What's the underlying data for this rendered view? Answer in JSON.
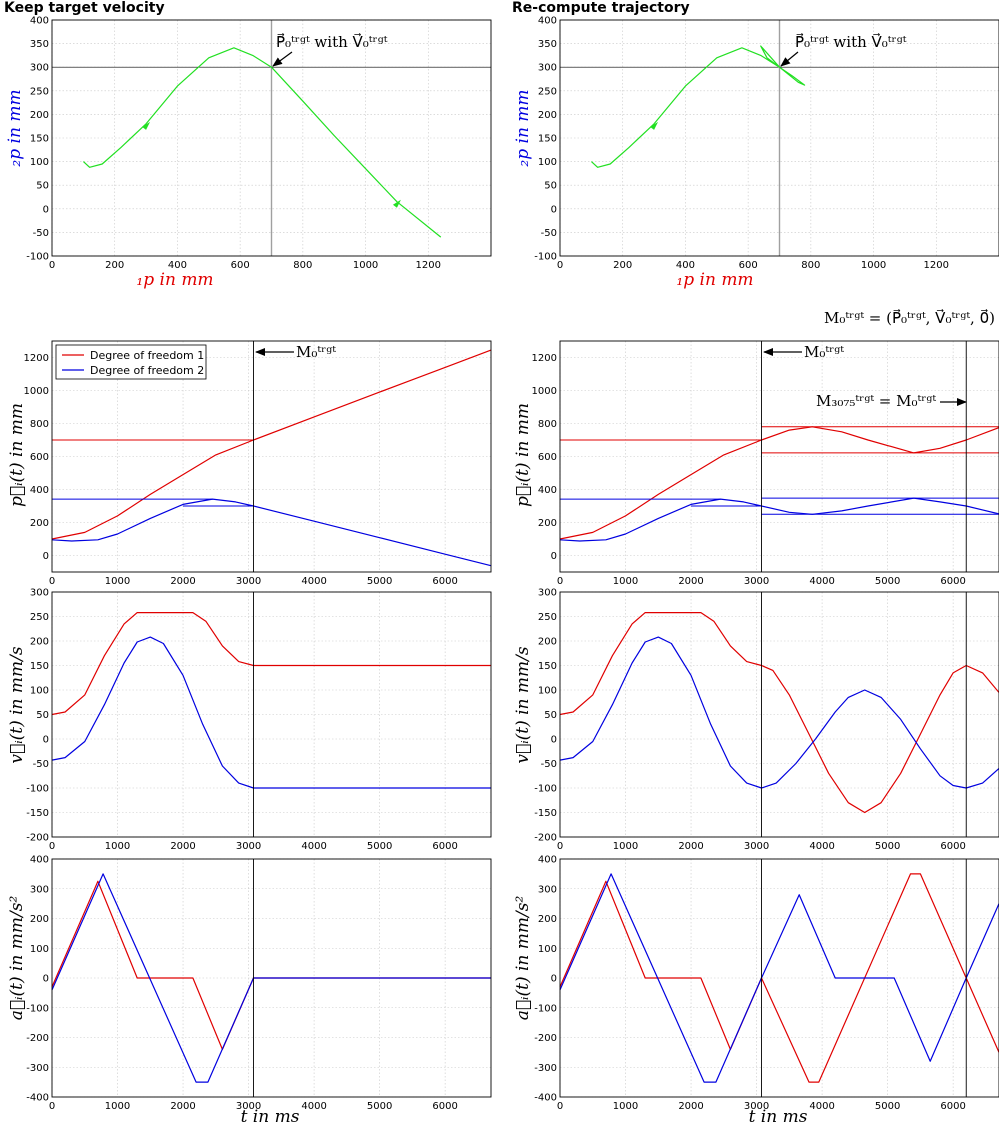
{
  "titles": {
    "left": "Keep target velocity",
    "right": "Re-compute trajectory"
  },
  "colors": {
    "dof1": "#e00000",
    "dof2": "#0000e0",
    "path": "#22e022",
    "target_line": "#a0a0a0"
  },
  "labels": {
    "xy_x": "₁p in mm",
    "xy_y": "₂p in mm",
    "pos_y": "p⃗ᵢ(t) in mm",
    "vel_y": "v⃗ᵢ(t) in mm/s",
    "acc_y": "a⃗ᵢ(t) in mm/s²",
    "time_x": "t in ms"
  },
  "annotations": {
    "target_point": "P⃗₀ᵗʳᵍᵗ with V⃗₀ᵗʳᵍᵗ",
    "m0": "M₀ᵗʳᵍᵗ",
    "m0_def": "M₀ᵗʳᵍᵗ = (P⃗₀ᵗʳᵍᵗ, V⃗₀ᵗʳᵍᵗ, 0⃗)",
    "m3075": "M₃₀₇₅ᵗʳᵍᵗ = M₀ᵗʳᵍᵗ"
  },
  "legend": [
    "Degree of freedom 1",
    "Degree of freedom 2"
  ],
  "chart_data": [
    {
      "id": "xy_keep",
      "type": "line",
      "title": "Keep target velocity",
      "xlim": [
        0,
        1400
      ],
      "ylim": [
        -100,
        400
      ],
      "xticks": [
        0,
        200,
        400,
        600,
        800,
        1000,
        1200
      ],
      "yticks": [
        -100,
        -50,
        0,
        50,
        100,
        150,
        200,
        250,
        300,
        350,
        400
      ],
      "grid": true,
      "target": {
        "x": 700,
        "y": 300
      },
      "series": [
        {
          "x": [
            100,
            120,
            160,
            220,
            300,
            400,
            500,
            580,
            640,
            700,
            800,
            900,
            1000,
            1100,
            1240
          ],
          "y": [
            100,
            88,
            95,
            130,
            180,
            260,
            320,
            341,
            325,
            300,
            228,
            155,
            85,
            15,
            -60
          ]
        }
      ]
    },
    {
      "id": "xy_recompute",
      "type": "line",
      "title": "Re-compute trajectory",
      "xlim": [
        0,
        1400
      ],
      "ylim": [
        -100,
        400
      ],
      "xticks": [
        0,
        200,
        400,
        600,
        800,
        1000,
        1200
      ],
      "yticks": [
        -100,
        -50,
        0,
        50,
        100,
        150,
        200,
        250,
        300,
        350,
        400
      ],
      "grid": true,
      "target": {
        "x": 700,
        "y": 300
      },
      "series": [
        {
          "x": [
            100,
            120,
            160,
            220,
            300,
            400,
            500,
            580,
            640,
            700,
            660,
            640,
            700,
            760,
            780,
            740,
            700
          ],
          "y": [
            100,
            88,
            95,
            130,
            180,
            260,
            320,
            341,
            325,
            300,
            320,
            345,
            300,
            268,
            262,
            282,
            300
          ]
        }
      ]
    },
    {
      "id": "pos_keep",
      "type": "line",
      "xlim": [
        0,
        6700
      ],
      "ylim": [
        -100,
        1300
      ],
      "xticks": [
        0,
        1000,
        2000,
        3000,
        4000,
        5000,
        6000
      ],
      "yticks": [
        0,
        200,
        400,
        600,
        800,
        1000,
        1200
      ],
      "grid": true,
      "vlines": [
        3075
      ],
      "series": [
        {
          "name": "Degree of freedom 1",
          "x": [
            0,
            500,
            1000,
            1500,
            2000,
            2500,
            3075,
            4000,
            5000,
            6000,
            6700
          ],
          "y": [
            100,
            140,
            240,
            370,
            490,
            610,
            700,
            840,
            990,
            1140,
            1245
          ],
          "hlines": [
            [
              0,
              3075,
              700
            ]
          ]
        },
        {
          "name": "Degree of freedom 2",
          "x": [
            0,
            300,
            700,
            1000,
            1500,
            2000,
            2450,
            2800,
            3075,
            4000,
            5000,
            6000,
            6700
          ],
          "y": [
            95,
            88,
            95,
            130,
            225,
            310,
            342,
            325,
            300,
            208,
            108,
            8,
            -62
          ],
          "hlines": [
            [
              0,
              2450,
              342
            ],
            [
              2000,
              3075,
              300
            ]
          ]
        }
      ]
    },
    {
      "id": "pos_recompute",
      "type": "line",
      "xlim": [
        0,
        6700
      ],
      "ylim": [
        -100,
        1300
      ],
      "xticks": [
        0,
        1000,
        2000,
        3000,
        4000,
        5000,
        6000
      ],
      "yticks": [
        0,
        200,
        400,
        600,
        800,
        1000,
        1200
      ],
      "grid": true,
      "vlines": [
        3075,
        6200
      ],
      "series": [
        {
          "name": "Degree of freedom 1",
          "x": [
            0,
            500,
            1000,
            1500,
            2000,
            2500,
            3075,
            3500,
            3850,
            4300,
            4700,
            5400,
            5800,
            6200,
            6700
          ],
          "y": [
            100,
            140,
            240,
            370,
            490,
            610,
            700,
            760,
            780,
            750,
            700,
            622,
            650,
            700,
            775
          ],
          "hlines": [
            [
              0,
              3075,
              700
            ],
            [
              3075,
              6700,
              780
            ],
            [
              3075,
              6700,
              622
            ]
          ]
        },
        {
          "name": "Degree of freedom 2",
          "x": [
            0,
            300,
            700,
            1000,
            1500,
            2000,
            2450,
            2800,
            3075,
            3500,
            3850,
            4300,
            4700,
            5400,
            5800,
            6200,
            6700
          ],
          "y": [
            95,
            88,
            95,
            130,
            225,
            310,
            342,
            325,
            300,
            262,
            250,
            270,
            300,
            348,
            325,
            300,
            252
          ],
          "hlines": [
            [
              0,
              2450,
              342
            ],
            [
              2000,
              3075,
              300
            ],
            [
              3075,
              6700,
              348
            ],
            [
              3075,
              6700,
              250
            ]
          ]
        }
      ]
    },
    {
      "id": "vel_keep",
      "type": "line",
      "xlim": [
        0,
        6700
      ],
      "ylim": [
        -200,
        300
      ],
      "xticks": [
        0,
        1000,
        2000,
        3000,
        4000,
        5000,
        6000
      ],
      "yticks": [
        -200,
        -150,
        -100,
        -50,
        0,
        50,
        100,
        150,
        200,
        250,
        300
      ],
      "grid": true,
      "vlines": [
        3075
      ],
      "series": [
        {
          "name": "Degree of freedom 1",
          "x": [
            0,
            200,
            500,
            800,
            1100,
            1300,
            2150,
            2350,
            2600,
            2850,
            3075,
            6700
          ],
          "y": [
            50,
            55,
            90,
            170,
            235,
            258,
            258,
            240,
            190,
            158,
            150,
            150
          ]
        },
        {
          "name": "Degree of freedom 2",
          "x": [
            0,
            200,
            500,
            800,
            1100,
            1300,
            1500,
            1700,
            2000,
            2300,
            2600,
            2850,
            3075,
            6700
          ],
          "y": [
            -43,
            -38,
            -5,
            70,
            155,
            198,
            208,
            195,
            130,
            30,
            -55,
            -90,
            -100,
            -100
          ]
        }
      ]
    },
    {
      "id": "vel_recompute",
      "type": "line",
      "xlim": [
        0,
        6700
      ],
      "ylim": [
        -200,
        300
      ],
      "xticks": [
        0,
        1000,
        2000,
        3000,
        4000,
        5000,
        6000
      ],
      "yticks": [
        -200,
        -150,
        -100,
        -50,
        0,
        50,
        100,
        150,
        200,
        250,
        300
      ],
      "grid": true,
      "vlines": [
        3075,
        6200
      ],
      "series": [
        {
          "name": "Degree of freedom 1",
          "x": [
            0,
            200,
            500,
            800,
            1100,
            1300,
            2150,
            2350,
            2600,
            2850,
            3075,
            3250,
            3500,
            3800,
            4100,
            4400,
            4650,
            4900,
            5200,
            5500,
            5800,
            6000,
            6200,
            6450,
            6700
          ],
          "y": [
            50,
            55,
            90,
            170,
            235,
            258,
            258,
            240,
            190,
            158,
            150,
            140,
            90,
            10,
            -70,
            -130,
            -150,
            -130,
            -70,
            10,
            90,
            135,
            150,
            135,
            95
          ]
        },
        {
          "name": "Degree of freedom 2",
          "x": [
            0,
            200,
            500,
            800,
            1100,
            1300,
            1500,
            1700,
            2000,
            2300,
            2600,
            2850,
            3075,
            3300,
            3600,
            3900,
            4200,
            4400,
            4650,
            4900,
            5200,
            5500,
            5800,
            6000,
            6200,
            6450,
            6700
          ],
          "y": [
            -43,
            -38,
            -5,
            70,
            155,
            198,
            208,
            195,
            130,
            30,
            -55,
            -90,
            -100,
            -90,
            -50,
            0,
            55,
            85,
            100,
            85,
            40,
            -20,
            -75,
            -95,
            -100,
            -90,
            -60
          ]
        }
      ]
    },
    {
      "id": "acc_keep",
      "type": "line",
      "xlim": [
        0,
        6700
      ],
      "ylim": [
        -400,
        400
      ],
      "xticks": [
        0,
        1000,
        2000,
        3000,
        4000,
        5000,
        6000
      ],
      "yticks": [
        -400,
        -300,
        -200,
        -100,
        0,
        100,
        200,
        300,
        400
      ],
      "grid": true,
      "vlines": [
        3075
      ],
      "series": [
        {
          "name": "Degree of freedom 1",
          "x": [
            0,
            700,
            1300,
            2150,
            2600,
            3075,
            6700
          ],
          "y": [
            -30,
            325,
            0,
            0,
            -240,
            0,
            0
          ]
        },
        {
          "name": "Degree of freedom 2",
          "x": [
            0,
            780,
            2200,
            2380,
            3075,
            6700
          ],
          "y": [
            -40,
            350,
            -350,
            -350,
            0,
            0
          ]
        }
      ]
    },
    {
      "id": "acc_recompute",
      "type": "line",
      "xlim": [
        0,
        6700
      ],
      "ylim": [
        -400,
        400
      ],
      "xticks": [
        0,
        1000,
        2000,
        3000,
        4000,
        5000,
        6000
      ],
      "yticks": [
        -400,
        -300,
        -200,
        -100,
        0,
        100,
        200,
        300,
        400
      ],
      "grid": true,
      "vlines": [
        3075,
        6200
      ],
      "series": [
        {
          "name": "Degree of freedom 1",
          "x": [
            0,
            700,
            1300,
            2150,
            2600,
            3075,
            3800,
            3950,
            5350,
            5500,
            6200,
            6700
          ],
          "y": [
            -30,
            325,
            0,
            0,
            -240,
            0,
            -350,
            -350,
            350,
            350,
            0,
            -250
          ]
        },
        {
          "name": "Degree of freedom 2",
          "x": [
            0,
            780,
            2200,
            2380,
            3075,
            3650,
            4200,
            5100,
            5650,
            6200,
            6700
          ],
          "y": [
            -40,
            350,
            -350,
            -350,
            0,
            280,
            0,
            0,
            -280,
            0,
            250
          ]
        }
      ]
    }
  ]
}
